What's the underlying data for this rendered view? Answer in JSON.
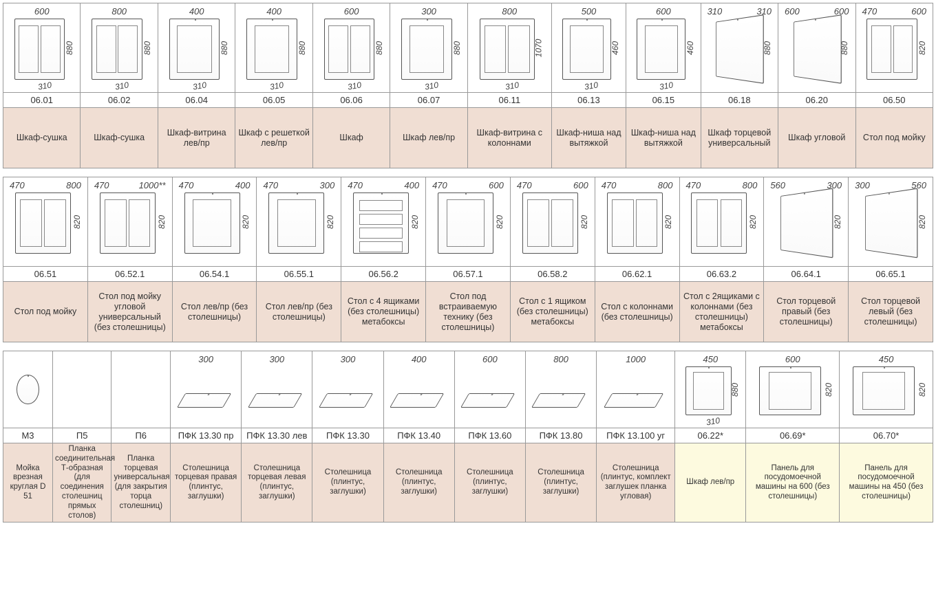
{
  "colors": {
    "desc_bg": "#f0ded3",
    "alt_bg": "#fdfadf",
    "border": "#999999",
    "text": "#333333"
  },
  "tables": [
    {
      "columns": 12,
      "col_widths_pct": [
        8.3,
        8.3,
        8.3,
        8.3,
        8.3,
        8.3,
        9.0,
        8.0,
        8.0,
        8.3,
        8.3,
        8.3
      ],
      "items": [
        {
          "code": "06.01",
          "desc": "Шкаф-сушка",
          "dims": {
            "w": "600",
            "h": "880",
            "d": "310"
          },
          "sketch": "two-door"
        },
        {
          "code": "06.02",
          "desc": "Шкаф-сушка",
          "dims": {
            "w": "800",
            "h": "880",
            "d": "310"
          },
          "sketch": "two-door"
        },
        {
          "code": "06.04",
          "desc": "Шкаф-витрина лев/пр",
          "dims": {
            "w": "400",
            "h": "880",
            "d": "310"
          },
          "sketch": "one-door"
        },
        {
          "code": "06.05",
          "desc": "Шкаф с решеткой лев/пр",
          "dims": {
            "w": "400",
            "h": "880",
            "d": "310"
          },
          "sketch": "one-door"
        },
        {
          "code": "06.06",
          "desc": "Шкаф",
          "dims": {
            "w": "600",
            "h": "880",
            "d": "310"
          },
          "sketch": "two-door"
        },
        {
          "code": "06.07",
          "desc": "Шкаф лев/пр",
          "dims": {
            "w": "300",
            "h": "880",
            "d": "310"
          },
          "sketch": "one-door"
        },
        {
          "code": "06.11",
          "desc": "Шкаф-витрина с колоннами",
          "dims": {
            "w": "800",
            "h": "1070",
            "d": "310"
          },
          "sketch": "two-door"
        },
        {
          "code": "06.13",
          "desc": "Шкаф-ниша над вытяжкой",
          "dims": {
            "w": "500",
            "h": "460",
            "d": "310"
          },
          "sketch": "one-door"
        },
        {
          "code": "06.15",
          "desc": "Шкаф-ниша над вытяжкой",
          "dims": {
            "w": "600",
            "h": "460",
            "d": "310"
          },
          "sketch": "one-door"
        },
        {
          "code": "06.18",
          "desc": "Шкаф торцевой универсальный",
          "dims": {
            "tl": "310",
            "tr": "310",
            "h": "880"
          },
          "sketch": "corner"
        },
        {
          "code": "06.20",
          "desc": "Шкаф угловой",
          "dims": {
            "tl": "600",
            "tr": "600",
            "h": "880"
          },
          "sketch": "corner"
        },
        {
          "code": "06.50",
          "desc": "Стол под мойку",
          "dims": {
            "tl": "470",
            "tr": "600",
            "h": "820"
          },
          "sketch": "two-door"
        }
      ]
    },
    {
      "columns": 11,
      "col_widths_pct": [
        9.1,
        9.1,
        9.1,
        9.1,
        9.1,
        9.1,
        9.1,
        9.1,
        9.1,
        9.1,
        9.1
      ],
      "items": [
        {
          "code": "06.51",
          "desc": "Стол под мойку",
          "dims": {
            "tl": "470",
            "tr": "800",
            "h": "820"
          },
          "sketch": "two-door"
        },
        {
          "code": "06.52.1",
          "desc": "Стол под мойку угловой универсальный (без столешницы)",
          "dims": {
            "tl": "470",
            "tr": "1000**",
            "h": "820"
          },
          "sketch": "two-door"
        },
        {
          "code": "06.54.1",
          "desc": "Стол лев/пр (без столешницы)",
          "dims": {
            "tl": "470",
            "tr": "400",
            "h": "820"
          },
          "sketch": "one-door"
        },
        {
          "code": "06.55.1",
          "desc": "Стол лев/пр (без столешницы)",
          "dims": {
            "tl": "470",
            "tr": "300",
            "h": "820"
          },
          "sketch": "one-door"
        },
        {
          "code": "06.56.2",
          "desc": "Стол с 4 ящиками (без столешницы) метабоксы",
          "dims": {
            "tl": "470",
            "tr": "400",
            "h": "820"
          },
          "sketch": "drawers"
        },
        {
          "code": "06.57.1",
          "desc": "Стол под встраиваемую технику (без столешницы)",
          "dims": {
            "tl": "470",
            "tr": "600",
            "h": "820"
          },
          "sketch": "one-door"
        },
        {
          "code": "06.58.2",
          "desc": "Стол с 1 ящиком (без столешницы) метабоксы",
          "dims": {
            "tl": "470",
            "tr": "600",
            "h": "820"
          },
          "sketch": "two-door"
        },
        {
          "code": "06.62.1",
          "desc": "Стол с колоннами (без столешницы)",
          "dims": {
            "tl": "470",
            "tr": "800",
            "h": "820"
          },
          "sketch": "two-door"
        },
        {
          "code": "06.63.2",
          "desc": "Стол с 2ящиками с колоннами (без столешницы) метабоксы",
          "dims": {
            "tl": "470",
            "tr": "800",
            "h": "820"
          },
          "sketch": "two-door"
        },
        {
          "code": "06.64.1",
          "desc": "Стол торцевой правый (без столешницы)",
          "dims": {
            "tl": "560",
            "tr": "300",
            "h": "820"
          },
          "sketch": "corner"
        },
        {
          "code": "06.65.1",
          "desc": "Стол торцевой левый (без столешницы)",
          "dims": {
            "tl": "300",
            "tr": "560",
            "h": "820"
          },
          "sketch": "corner"
        }
      ]
    },
    {
      "columns": 13,
      "col_widths_pct": [
        5.3,
        6.3,
        6.3,
        7.6,
        7.6,
        7.6,
        7.6,
        7.6,
        7.6,
        8.4,
        7.6,
        10,
        10
      ],
      "small": true,
      "items": [
        {
          "code": "M3",
          "desc": "Мойка врезная круглая D 51",
          "dims": {},
          "sketch": "round"
        },
        {
          "code": "П5",
          "desc": "Планка соединительная Т-образная (для соединения столешниц прямых столов)",
          "dims": {},
          "sketch": ""
        },
        {
          "code": "П6",
          "desc": "Планка торцевая универсальная (для закрытия торца столешниц)",
          "dims": {},
          "sketch": ""
        },
        {
          "code": "ПФК 13.30 пр",
          "desc": "Столешница торцевая правая (плинтус, заглушки)",
          "dims": {
            "w": "300"
          },
          "sketch": "slab"
        },
        {
          "code": "ПФК 13.30 лев",
          "desc": "Столешница торцевая левая (плинтус, заглушки)",
          "dims": {
            "w": "300"
          },
          "sketch": "slab"
        },
        {
          "code": "ПФК 13.30",
          "desc": "Столешница (плинтус, заглушки)",
          "dims": {
            "w": "300"
          },
          "sketch": "slab"
        },
        {
          "code": "ПФК 13.40",
          "desc": "Столешница (плинтус, заглушки)",
          "dims": {
            "w": "400"
          },
          "sketch": "slab"
        },
        {
          "code": "ПФК 13.60",
          "desc": "Столешница (плинтус, заглушки)",
          "dims": {
            "w": "600"
          },
          "sketch": "slab"
        },
        {
          "code": "ПФК 13.80",
          "desc": "Столешница (плинтус, заглушки)",
          "dims": {
            "w": "800"
          },
          "sketch": "slab"
        },
        {
          "code": "ПФК 13.100 уг",
          "desc": "Столешница (плинтус, комплект заглушек планка угловая)",
          "dims": {
            "w": "1000"
          },
          "sketch": "slab"
        },
        {
          "code": "06.22*",
          "desc": "Шкаф лев/пр",
          "dims": {
            "w": "450",
            "h": "880",
            "d": "310"
          },
          "sketch": "one-door",
          "alt": true
        },
        {
          "code": "06.69*",
          "desc": "Панель для посудомоечной машины на 600 (без столешницы)",
          "dims": {
            "w": "600",
            "h": "820"
          },
          "sketch": "one-door",
          "alt": true
        },
        {
          "code": "06.70*",
          "desc": "Панель для посудомоечной машины на 450 (без столешницы)",
          "dims": {
            "w": "450",
            "h": "820"
          },
          "sketch": "one-door",
          "alt": true
        }
      ]
    }
  ]
}
